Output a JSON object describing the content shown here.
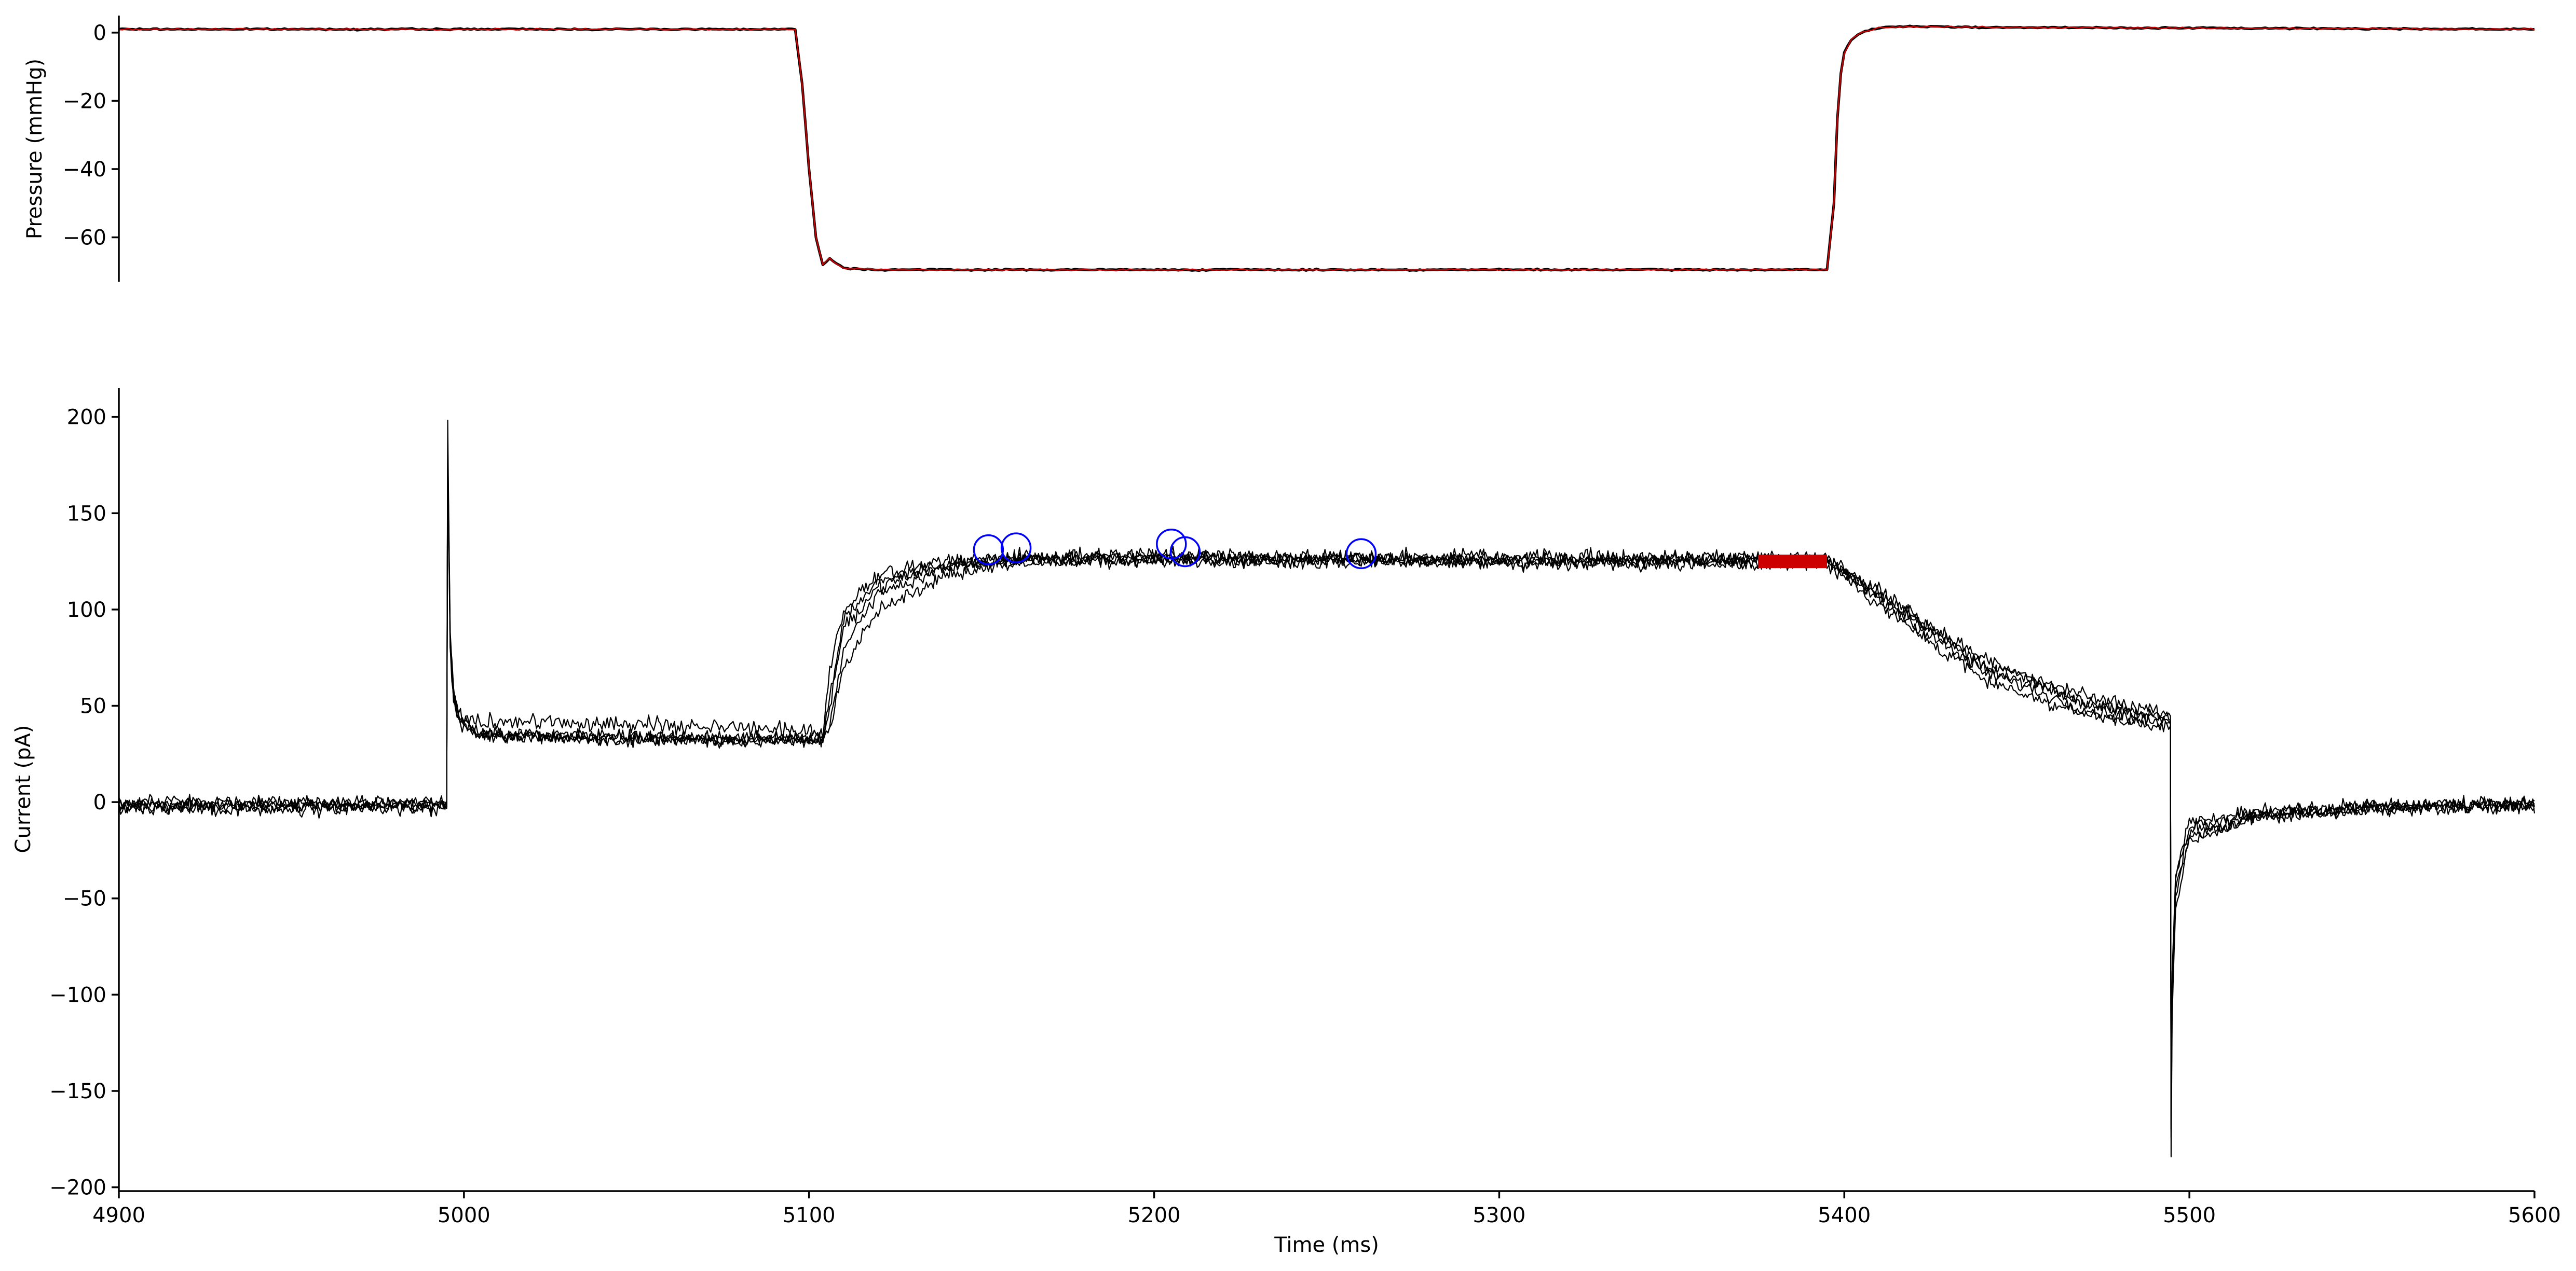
{
  "chart_data": [
    {
      "type": "line",
      "panel": "top",
      "ylabel": "Pressure (mmHg)",
      "xlabel": "",
      "xlim": [
        4900,
        5600
      ],
      "ylim": [
        -73,
        5
      ],
      "yticks": [
        0,
        -20,
        -40,
        -60
      ],
      "ytick_labels": [
        "0",
        "−20",
        "−40",
        "−60"
      ],
      "grid": false,
      "series": [
        {
          "color": "#000000",
          "x": [
            4900,
            5096,
            5098,
            5100,
            5102,
            5104,
            5105,
            5106,
            5107,
            5110,
            5120,
            5200,
            5300,
            5395,
            5397,
            5398,
            5399,
            5400,
            5402,
            5405,
            5410,
            5420,
            5450,
            5600
          ],
          "y": [
            1,
            1,
            -15,
            -40,
            -60,
            -68,
            -67,
            -66,
            -67,
            -69,
            -69.5,
            -69.5,
            -69.5,
            -69.5,
            -50,
            -25,
            -12,
            -6,
            -2,
            0,
            1.5,
            1.8,
            1.5,
            1
          ]
        },
        {
          "color": "#cc0000",
          "x": [
            4900,
            5096,
            5098,
            5100,
            5102,
            5104,
            5105,
            5106,
            5107,
            5110,
            5120,
            5200,
            5300,
            5395,
            5397,
            5398,
            5399,
            5400,
            5402,
            5405,
            5410,
            5420,
            5450,
            5600
          ],
          "y": [
            1,
            1,
            -15,
            -40,
            -60,
            -68,
            -67,
            -66,
            -67,
            -69,
            -69.5,
            -69.5,
            -69.5,
            -69.5,
            -50,
            -25,
            -12,
            -6,
            -2,
            0,
            1.5,
            1.8,
            1.5,
            1
          ]
        }
      ]
    },
    {
      "type": "line",
      "panel": "bottom",
      "ylabel": "Current (pA)",
      "xlabel": "Time (ms)",
      "xlim": [
        4900,
        5600
      ],
      "ylim": [
        -202,
        215
      ],
      "yticks": [
        200,
        150,
        100,
        50,
        0,
        -50,
        -100,
        -150,
        -200
      ],
      "ytick_labels": [
        "200",
        "150",
        "100",
        "50",
        "0",
        "−50",
        "−100",
        "−150",
        "−200"
      ],
      "xticks": [
        4900,
        5000,
        5100,
        5200,
        5300,
        5400,
        5500,
        5600
      ],
      "xtick_labels": [
        "4900",
        "5000",
        "5100",
        "5200",
        "5300",
        "5400",
        "5500",
        "5600"
      ],
      "grid": false,
      "series": [
        {
          "color": "#000000",
          "x": [
            4900,
            4995,
            4995.3,
            4996,
            4997,
            4999,
            5005,
            5050,
            5100,
            5104,
            5106,
            5110,
            5120,
            5140,
            5160,
            5200,
            5300,
            5395,
            5410,
            5440,
            5470,
            5494.5,
            5494.7,
            5495,
            5496,
            5500,
            5520,
            5550,
            5600
          ],
          "y": [
            -2,
            -2,
            195,
            90,
            60,
            42,
            36,
            34,
            33,
            32,
            55,
            95,
            115,
            124,
            126,
            127,
            126,
            126,
            108,
            72,
            55,
            46,
            -182,
            -110,
            -55,
            -20,
            -8,
            -4,
            -1
          ],
          "noise": 2.5
        },
        {
          "color": "#000000",
          "x": [
            4900,
            4995,
            4995.3,
            4996,
            4997,
            4999,
            5005,
            5050,
            5100,
            5104,
            5106,
            5110,
            5120,
            5140,
            5160,
            5200,
            5300,
            5395,
            5410,
            5440,
            5470,
            5494.5,
            5494.7,
            5495,
            5496,
            5500,
            5520,
            5550,
            5600
          ],
          "y": [
            -3,
            -3,
            190,
            85,
            58,
            44,
            42,
            40,
            38,
            35,
            70,
            100,
            118,
            125,
            127,
            128,
            127,
            127,
            110,
            70,
            52,
            42,
            -175,
            -100,
            -45,
            -15,
            -7,
            -3,
            -1
          ],
          "noise": 3
        },
        {
          "color": "#000000",
          "x": [
            4900,
            4995,
            4995.3,
            4996,
            4997,
            4999,
            5005,
            5050,
            5100,
            5104,
            5106,
            5110,
            5120,
            5140,
            5160,
            5200,
            5300,
            5395,
            5410,
            5440,
            5470,
            5494.5,
            5494.7,
            5495,
            5496,
            5500,
            5520,
            5550,
            5600
          ],
          "y": [
            0,
            0,
            185,
            85,
            55,
            42,
            35,
            33,
            32,
            33,
            40,
            80,
            108,
            122,
            126,
            126,
            125,
            125,
            105,
            68,
            48,
            40,
            -170,
            -95,
            -40,
            -12,
            -6,
            -3,
            -1
          ],
          "noise": 2.5
        },
        {
          "color": "#000000",
          "x": [
            4900,
            4995,
            4995.3,
            4996,
            4997,
            4999,
            5005,
            5050,
            5100,
            5104,
            5106,
            5110,
            5120,
            5140,
            5160,
            5200,
            5300,
            5395,
            5410,
            5440,
            5470,
            5494.5,
            5494.7,
            5495,
            5496,
            5500,
            5520,
            5550,
            5600
          ],
          "y": [
            -1,
            -1,
            180,
            80,
            52,
            40,
            34,
            33,
            32,
            33,
            38,
            70,
            100,
            118,
            124,
            125,
            124,
            124,
            102,
            64,
            45,
            38,
            -165,
            -90,
            -38,
            -10,
            -5,
            -2,
            -1
          ],
          "noise": 2.5
        },
        {
          "color": "#000000",
          "x": [
            4900,
            4995,
            4995.3,
            4996,
            4997,
            4999,
            5005,
            5050,
            5100,
            5104,
            5106,
            5110,
            5120,
            5140,
            5160,
            5200,
            5300,
            5395,
            5410,
            5440,
            5470,
            5494.5,
            5494.7,
            5495,
            5496,
            5500,
            5520,
            5550,
            5600
          ],
          "y": [
            -2,
            -2,
            182,
            82,
            54,
            41,
            35,
            33,
            32,
            33,
            48,
            90,
            112,
            123,
            126,
            127,
            126,
            126,
            108,
            75,
            50,
            44,
            -172,
            -105,
            -50,
            -18,
            -8,
            -4,
            -1
          ],
          "noise": 2.5
        }
      ],
      "markers": {
        "circles": {
          "color": "#0000ff",
          "points": [
            {
              "x": 5152,
              "y": 131
            },
            {
              "x": 5160,
              "y": 132
            },
            {
              "x": 5205,
              "y": 134
            },
            {
              "x": 5209,
              "y": 130
            },
            {
              "x": 5260,
              "y": 129
            }
          ]
        },
        "fit_segment": {
          "color": "#cc0000",
          "x": [
            5375,
            5395
          ],
          "y": [
            125,
            125
          ]
        }
      }
    }
  ]
}
